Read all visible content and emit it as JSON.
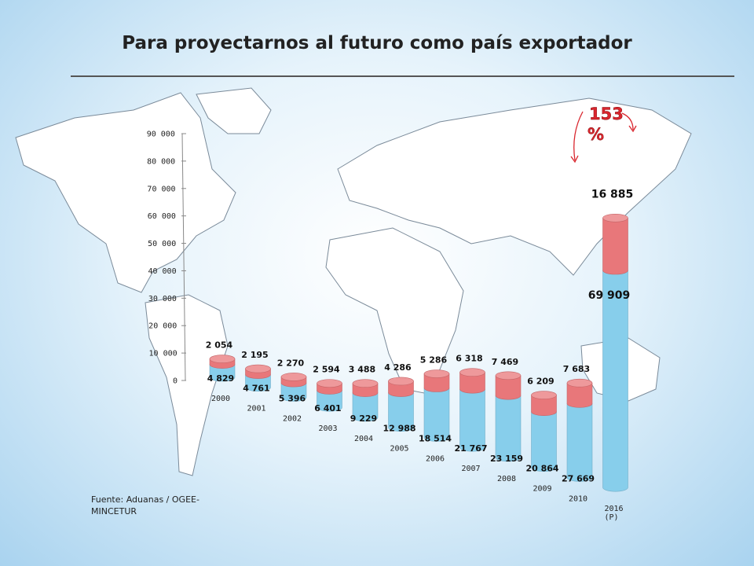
{
  "title": "Para proyectarnos al futuro como país exportador",
  "source": "Fuente: Aduanas / OGEE-MINCETUR",
  "colors": {
    "bottom_segment": "#87CEEB",
    "top_segment": "#E8777A",
    "growth_arrow": "#D9262E"
  },
  "chart_data": {
    "type": "bar",
    "stacked": true,
    "categories": [
      "2000",
      "2001",
      "2002",
      "2003",
      "2004",
      "2005",
      "2006",
      "2007",
      "2008",
      "2009",
      "2010",
      "2016\n(P)"
    ],
    "series": [
      {
        "values": [
          4829,
          4761,
          5396,
          6401,
          9229,
          12988,
          18514,
          21767,
          23159,
          20864,
          27669,
          69909
        ]
      },
      {
        "values": [
          2054,
          2195,
          2270,
          2594,
          3488,
          4286,
          5286,
          6318,
          7469,
          6209,
          7683,
          16885
        ]
      }
    ],
    "bottom_labels": [
      "4 829",
      "4 761",
      "5 396",
      "6 401",
      "9 229",
      "12 988",
      "18 514",
      "21 767",
      "23 159",
      "20 864",
      "27 669",
      "69 909"
    ],
    "top_labels": [
      "2 054",
      "2 195",
      "2 270",
      "2 594",
      "3 488",
      "4 286",
      "5 286",
      "6 318",
      "7 469",
      "6 209",
      "7 683",
      "16 885"
    ],
    "yticks": [
      "0",
      "10 000",
      "20 000",
      "30 000",
      "40 000",
      "50 000",
      "60 000",
      "70 000",
      "80 000",
      "90 000"
    ],
    "ylim": [
      0,
      90000
    ],
    "grid": false,
    "annotation": {
      "value": "153",
      "unit": "%"
    }
  }
}
